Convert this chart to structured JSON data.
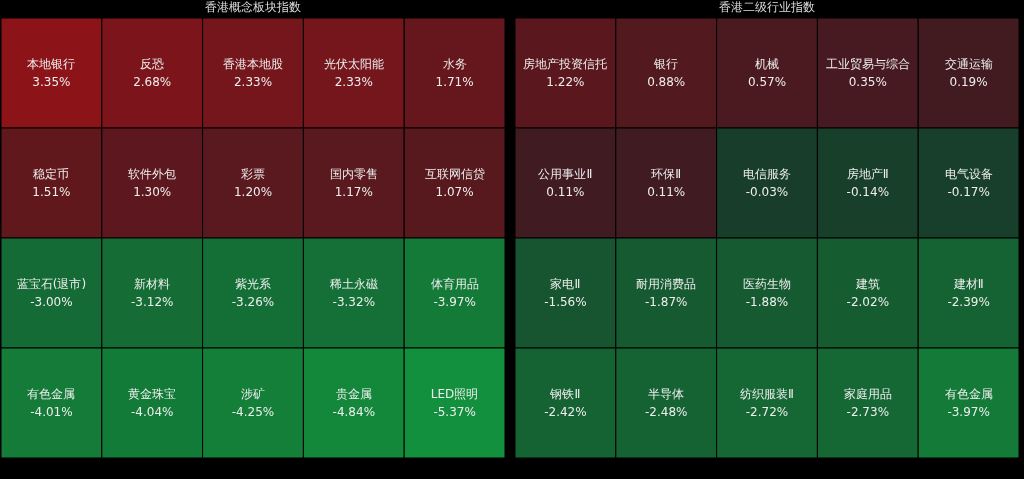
{
  "chart_data": [
    {
      "type": "other",
      "title": "香港概念板块指数",
      "categories": [
        "本地银行",
        "反恐",
        "香港本地股",
        "光伏太阳能",
        "水务",
        "稳定币",
        "软件外包",
        "彩票",
        "国内零售",
        "互联网信贷",
        "蓝宝石(退市)",
        "新材料",
        "紫光系",
        "稀土永磁",
        "体育用品",
        "有色金属",
        "黄金珠宝",
        "涉矿",
        "贵金属",
        "LED照明"
      ],
      "values": [
        3.35,
        2.68,
        2.33,
        2.33,
        1.71,
        1.51,
        1.3,
        1.2,
        1.17,
        1.07,
        -3.0,
        -3.12,
        -3.26,
        -3.32,
        -3.97,
        -4.01,
        -4.04,
        -4.25,
        -4.84,
        -5.37
      ],
      "value_labels": [
        "3.35%",
        "2.68%",
        "2.33%",
        "2.33%",
        "1.71%",
        "1.51%",
        "1.30%",
        "1.20%",
        "1.17%",
        "1.07%",
        "-3.00%",
        "-3.12%",
        "-3.26%",
        "-3.32%",
        "-3.97%",
        "-4.01%",
        "-4.04%",
        "-4.25%",
        "-4.84%",
        "-5.37%"
      ]
    },
    {
      "type": "other",
      "title": "香港二级行业指数",
      "categories": [
        "房地产投资信托",
        "银行",
        "机械",
        "工业贸易与综合",
        "交通运输",
        "公用事业Ⅱ",
        "环保Ⅱ",
        "电信服务",
        "房地产Ⅱ",
        "电气设备",
        "家电Ⅱ",
        "耐用消费品",
        "医药生物",
        "建筑",
        "建材Ⅱ",
        "钢铁Ⅱ",
        "半导体",
        "纺织服装Ⅱ",
        "家庭用品",
        "有色金属"
      ],
      "values": [
        1.22,
        0.88,
        0.57,
        0.35,
        0.19,
        0.11,
        0.11,
        -0.03,
        -0.14,
        -0.17,
        -1.56,
        -1.87,
        -1.88,
        -2.02,
        -2.39,
        -2.42,
        -2.48,
        -2.72,
        -2.73,
        -3.97
      ],
      "value_labels": [
        "1.22%",
        "0.88%",
        "0.57%",
        "0.35%",
        "0.19%",
        "0.11%",
        "0.11%",
        "-0.03%",
        "-0.14%",
        "-0.17%",
        "-1.56%",
        "-1.87%",
        "-1.88%",
        "-2.02%",
        "-2.39%",
        "-2.42%",
        "-2.48%",
        "-2.72%",
        "-2.73%",
        "-3.97%"
      ]
    }
  ]
}
